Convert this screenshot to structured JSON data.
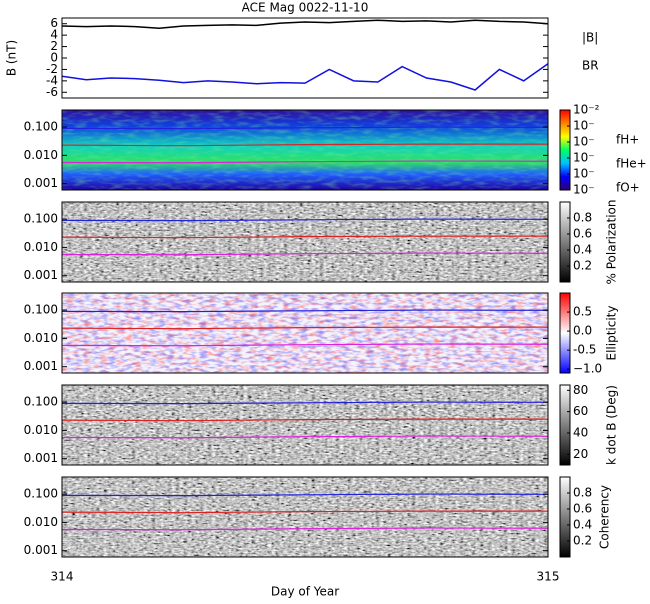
{
  "chart_data": [
    {
      "type": "line",
      "title": "ACE Mag 0022-11-10",
      "ylabel": "B (nT)",
      "x": [
        314,
        314.05,
        314.1,
        314.15,
        314.2,
        314.25,
        314.3,
        314.35,
        314.4,
        314.45,
        314.5,
        314.55,
        314.6,
        314.65,
        314.7,
        314.75,
        314.8,
        314.85,
        314.9,
        314.95,
        315
      ],
      "series": [
        {
          "name": "|B|",
          "color": "#000000",
          "values": [
            5.6,
            5.5,
            5.6,
            5.5,
            5.2,
            5.6,
            5.7,
            5.8,
            5.7,
            6.1,
            6.3,
            6.2,
            6.4,
            6.6,
            6.4,
            6.5,
            6.3,
            6.6,
            6.4,
            6.3,
            6.0
          ]
        },
        {
          "name": "BR",
          "color": "#1010e0",
          "values": [
            -3.2,
            -3.8,
            -3.5,
            -3.6,
            -3.9,
            -4.3,
            -4.0,
            -4.2,
            -4.5,
            -4.3,
            -4.4,
            -2.0,
            -4.0,
            -4.2,
            -1.5,
            -3.5,
            -4.2,
            -5.6,
            -2.0,
            -4.0,
            -1.0
          ]
        }
      ],
      "ylim": [
        -7,
        7
      ],
      "yticks": [
        6,
        4,
        2,
        0,
        -2,
        -4,
        -6
      ]
    },
    {
      "type": "spectrogram",
      "texture": "power",
      "ylim": [
        0.0006,
        0.4
      ],
      "ylog": true,
      "yticks": [
        {
          "value": 0.1,
          "label": "0.100"
        },
        {
          "value": 0.01,
          "label": "0.010"
        },
        {
          "value": 0.001,
          "label": "0.001"
        }
      ],
      "x": [
        314,
        314.25,
        314.5,
        314.75,
        315
      ],
      "series": [
        {
          "name": "fH+",
          "color": "#2222dd",
          "values": [
            0.09,
            0.088,
            0.094,
            0.1,
            0.098
          ]
        },
        {
          "name": "fHe+",
          "color": "#dd2222",
          "values": [
            0.023,
            0.022,
            0.024,
            0.025,
            0.025
          ]
        },
        {
          "name": "fO+",
          "color": "#dd22dd",
          "values": [
            0.0056,
            0.0055,
            0.006,
            0.0063,
            0.0062
          ]
        }
      ],
      "colorbar": {
        "lim": [
          1e-07,
          0.01
        ],
        "log": true,
        "ticks": [
          {
            "value": 0.01,
            "label": "10⁻²"
          },
          {
            "value": 0.001,
            "label": "10⁻"
          },
          {
            "value": 0.0001,
            "label": "10⁻"
          },
          {
            "value": 1e-05,
            "label": "10⁻"
          },
          {
            "value": 1e-06,
            "label": "10⁻"
          },
          {
            "value": 1e-07,
            "label": "10⁻"
          }
        ],
        "colors": [
          "#300070",
          "#0000ff",
          "#00c0ff",
          "#00ff60",
          "#ffff00",
          "#ff8000",
          "#ff0000"
        ]
      }
    },
    {
      "type": "spectrogram",
      "texture": "gray",
      "ylim": [
        0.0006,
        0.4
      ],
      "ylog": true,
      "yticks": [
        {
          "value": 0.1,
          "label": "0.100"
        },
        {
          "value": 0.01,
          "label": "0.010"
        },
        {
          "value": 0.001,
          "label": "0.001"
        }
      ],
      "x": [
        314,
        314.25,
        314.5,
        314.75,
        315
      ],
      "series": [
        {
          "color": "#2222dd",
          "values": [
            0.09,
            0.088,
            0.094,
            0.1,
            0.098
          ]
        },
        {
          "color": "#dd2222",
          "values": [
            0.023,
            0.022,
            0.024,
            0.025,
            0.025
          ]
        },
        {
          "color": "#dd22dd",
          "values": [
            0.0056,
            0.0055,
            0.006,
            0.0063,
            0.0062
          ]
        }
      ],
      "colorbar": {
        "label": "% Polarization",
        "lim": [
          0,
          1
        ],
        "ticks": [
          0.8,
          0.6,
          0.4,
          0.2
        ],
        "colors": [
          "#000000",
          "#ffffff"
        ]
      }
    },
    {
      "type": "spectrogram",
      "texture": "redblue",
      "ylim": [
        0.0006,
        0.4
      ],
      "ylog": true,
      "yticks": [
        {
          "value": 0.1,
          "label": "0.100"
        },
        {
          "value": 0.01,
          "label": "0.010"
        },
        {
          "value": 0.001,
          "label": "0.001"
        }
      ],
      "x": [
        314,
        314.25,
        314.5,
        314.75,
        315
      ],
      "series": [
        {
          "color": "#2222dd",
          "values": [
            0.09,
            0.088,
            0.094,
            0.1,
            0.098
          ]
        },
        {
          "color": "#dd2222",
          "values": [
            0.023,
            0.022,
            0.024,
            0.025,
            0.025
          ]
        },
        {
          "color": "#dd22dd",
          "values": [
            0.0056,
            0.0055,
            0.006,
            0.0063,
            0.0062
          ]
        }
      ],
      "colorbar": {
        "label": "Ellipticity",
        "lim": [
          -1.1,
          1
        ],
        "ticks": [
          0.5,
          {
            "value": 0,
            "label": "0.0"
          },
          -0.5,
          {
            "value": -1,
            "label": "−1.0"
          }
        ],
        "colors": [
          "#0000ff",
          "#ffffff",
          "#ff0000"
        ]
      }
    },
    {
      "type": "spectrogram",
      "texture": "gray",
      "ylim": [
        0.0006,
        0.4
      ],
      "ylog": true,
      "yticks": [
        {
          "value": 0.1,
          "label": "0.100"
        },
        {
          "value": 0.01,
          "label": "0.010"
        },
        {
          "value": 0.001,
          "label": "0.001"
        }
      ],
      "x": [
        314,
        314.25,
        314.5,
        314.75,
        315
      ],
      "series": [
        {
          "color": "#2222dd",
          "values": [
            0.09,
            0.088,
            0.094,
            0.1,
            0.098
          ]
        },
        {
          "color": "#dd2222",
          "values": [
            0.023,
            0.022,
            0.024,
            0.025,
            0.025
          ]
        },
        {
          "color": "#dd22dd",
          "values": [
            0.0056,
            0.0055,
            0.006,
            0.0063,
            0.0062
          ]
        }
      ],
      "colorbar": {
        "label": "k dot B (Deg)",
        "lim": [
          10,
          85
        ],
        "ticks": [
          80,
          60,
          40,
          20
        ],
        "colors": [
          "#000000",
          "#ffffff"
        ]
      }
    },
    {
      "type": "spectrogram",
      "texture": "gray",
      "ylim": [
        0.0006,
        0.4
      ],
      "ylog": true,
      "yticks": [
        {
          "value": 0.1,
          "label": "0.100"
        },
        {
          "value": 0.01,
          "label": "0.010"
        },
        {
          "value": 0.001,
          "label": "0.001"
        }
      ],
      "x": [
        314,
        314.25,
        314.5,
        314.75,
        315
      ],
      "series": [
        {
          "color": "#2222dd",
          "values": [
            0.09,
            0.088,
            0.094,
            0.1,
            0.098
          ]
        },
        {
          "color": "#dd2222",
          "values": [
            0.023,
            0.022,
            0.024,
            0.025,
            0.025
          ]
        },
        {
          "color": "#dd22dd",
          "values": [
            0.0056,
            0.0055,
            0.006,
            0.0063,
            0.0062
          ]
        }
      ],
      "colorbar": {
        "label": "Coherency",
        "lim": [
          0,
          1
        ],
        "ticks": [
          0.8,
          0.6,
          0.4,
          0.2
        ],
        "colors": [
          "#000000",
          "#ffffff"
        ]
      },
      "xlim": [
        314,
        315
      ],
      "xticks": [
        314,
        315
      ],
      "xlabel": "Day of Year"
    }
  ]
}
